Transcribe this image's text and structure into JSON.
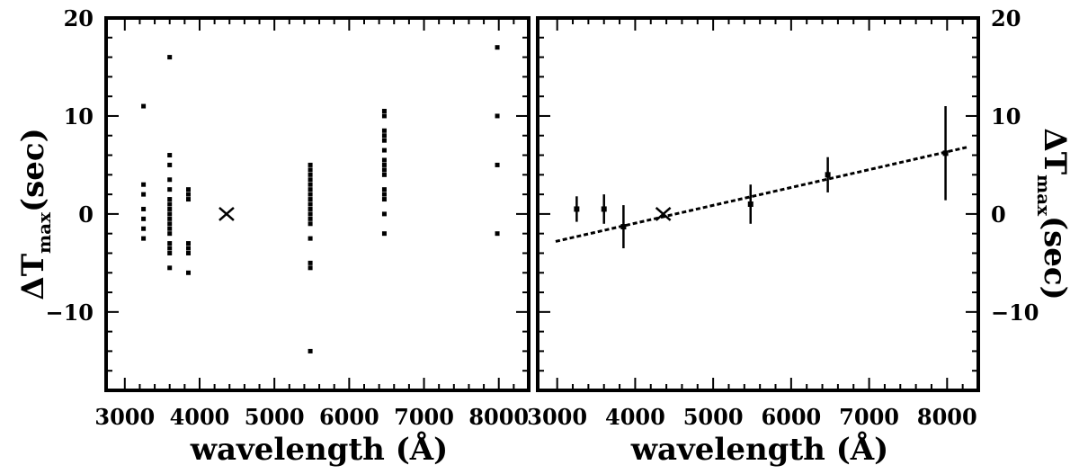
{
  "chart_data": [
    {
      "type": "scatter",
      "panel": "left",
      "xlabel": "wavelength (Å)",
      "ylabel_main": "ΔT",
      "ylabel_sub": "max",
      "ylabel_unit": "(sec)",
      "xlim": [
        2750,
        8400
      ],
      "ylim": [
        -18,
        20
      ],
      "xticks": [
        3000,
        4000,
        5000,
        6000,
        7000,
        8000
      ],
      "xtick_labels": [
        "3000",
        "4000",
        "5000",
        "6000",
        "7000",
        "8000"
      ],
      "yticks": [
        20,
        10,
        0,
        -10
      ],
      "ytick_labels": [
        "20",
        "10",
        "0",
        "−10"
      ],
      "grid": false,
      "legend": "none",
      "series": [
        {
          "marker": "dot",
          "points": [
            [
              3250,
              11
            ],
            [
              3250,
              3
            ],
            [
              3250,
              2
            ],
            [
              3250,
              0.5
            ],
            [
              3250,
              -0.5
            ],
            [
              3250,
              -1.5
            ],
            [
              3250,
              -2.5
            ],
            [
              3600,
              16
            ],
            [
              3600,
              6
            ],
            [
              3600,
              5
            ],
            [
              3600,
              3.5
            ],
            [
              3600,
              2.5
            ],
            [
              3600,
              1.5
            ],
            [
              3600,
              1
            ],
            [
              3600,
              0.5
            ],
            [
              3600,
              0
            ],
            [
              3600,
              -0.5
            ],
            [
              3600,
              -1
            ],
            [
              3600,
              -1.5
            ],
            [
              3600,
              -2
            ],
            [
              3600,
              -3
            ],
            [
              3600,
              -3.5
            ],
            [
              3600,
              -4
            ],
            [
              3600,
              -5.5
            ],
            [
              3850,
              2.5
            ],
            [
              3850,
              2
            ],
            [
              3850,
              1.5
            ],
            [
              3850,
              -3
            ],
            [
              3850,
              -3.5
            ],
            [
              3850,
              -4
            ],
            [
              3850,
              -6
            ],
            [
              5480,
              5
            ],
            [
              5480,
              4.5
            ],
            [
              5480,
              4
            ],
            [
              5480,
              3.5
            ],
            [
              5480,
              3
            ],
            [
              5480,
              2.5
            ],
            [
              5480,
              2
            ],
            [
              5480,
              1.5
            ],
            [
              5480,
              1
            ],
            [
              5480,
              0.5
            ],
            [
              5480,
              0
            ],
            [
              5480,
              -0.5
            ],
            [
              5480,
              -1
            ],
            [
              5480,
              -2.5
            ],
            [
              5480,
              -5
            ],
            [
              5480,
              -5.5
            ],
            [
              5480,
              -14
            ],
            [
              6470,
              10.5
            ],
            [
              6470,
              10
            ],
            [
              6470,
              8.5
            ],
            [
              6470,
              8
            ],
            [
              6470,
              7.5
            ],
            [
              6470,
              6.5
            ],
            [
              6470,
              5.5
            ],
            [
              6470,
              5
            ],
            [
              6470,
              4.5
            ],
            [
              6470,
              4
            ],
            [
              6470,
              2.5
            ],
            [
              6470,
              2
            ],
            [
              6470,
              1.5
            ],
            [
              6470,
              0
            ],
            [
              6470,
              -2
            ],
            [
              7980,
              17
            ],
            [
              7980,
              10
            ],
            [
              7980,
              5
            ],
            [
              7980,
              -2
            ]
          ]
        },
        {
          "marker": "cross",
          "points": [
            [
              4360,
              0
            ]
          ]
        }
      ]
    },
    {
      "type": "scatter",
      "panel": "right",
      "xlabel": "wavelength (Å)",
      "ylabel_main": "ΔT",
      "ylabel_sub": "max",
      "ylabel_unit": "(sec)",
      "xlim": [
        2750,
        8400
      ],
      "ylim": [
        -18,
        20
      ],
      "xticks": [
        3000,
        4000,
        5000,
        6000,
        7000,
        8000
      ],
      "xtick_labels": [
        "3000",
        "4000",
        "5000",
        "6000",
        "7000",
        "8000"
      ],
      "yticks": [
        20,
        10,
        0,
        -10
      ],
      "ytick_labels": [
        "20",
        "10",
        "0",
        "−10"
      ],
      "grid": false,
      "legend": "none",
      "series": [
        {
          "marker": "dot-errorbar",
          "points": [
            {
              "x": 3250,
              "y": 0.5,
              "err": 1.3
            },
            {
              "x": 3600,
              "y": 0.5,
              "err": 1.5
            },
            {
              "x": 3850,
              "y": -1.3,
              "err": 2.2
            },
            {
              "x": 5480,
              "y": 1.0,
              "err": 2.0
            },
            {
              "x": 6470,
              "y": 4.0,
              "err": 1.8
            },
            {
              "x": 7980,
              "y": 6.2,
              "err": 4.8
            }
          ]
        },
        {
          "marker": "cross",
          "points": [
            [
              4360,
              0
            ]
          ]
        }
      ],
      "fit_line": {
        "style": "dashed",
        "x": [
          2980,
          8250
        ],
        "y": [
          -2.8,
          6.8
        ]
      }
    }
  ]
}
